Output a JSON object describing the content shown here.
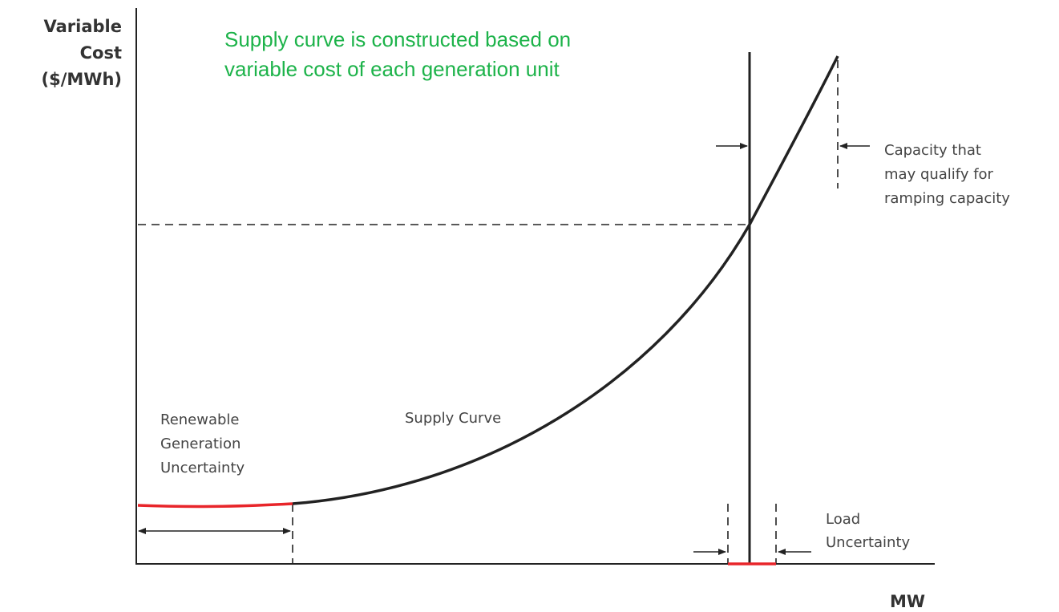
{
  "axes": {
    "y_label": [
      "Variable",
      "Cost",
      "($/MWh)"
    ],
    "x_label": "MW"
  },
  "note": [
    "Supply curve is constructed based on",
    "variable cost of each generation unit"
  ],
  "labels": {
    "supply_curve": "Supply Curve",
    "renewable": [
      "Renewable",
      "Generation",
      "Uncertainty"
    ],
    "load": [
      "Load",
      "Uncertainty"
    ],
    "capacity": [
      "Capacity that",
      "may qualify for",
      "ramping capacity"
    ]
  }
}
